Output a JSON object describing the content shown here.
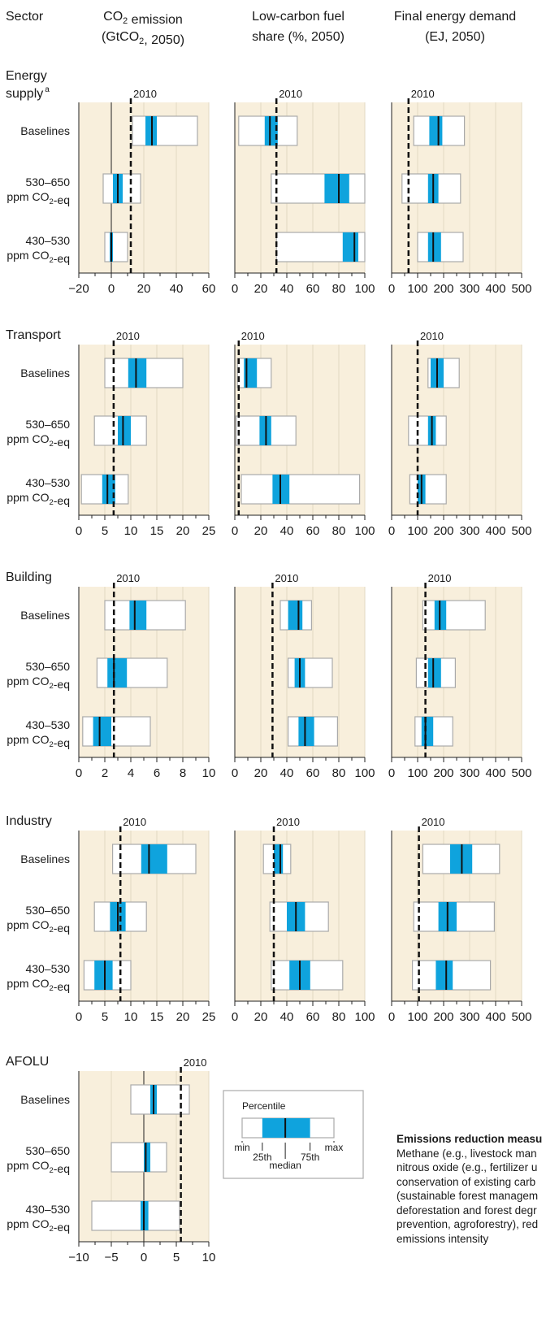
{
  "header": {
    "sector": "Sector",
    "col1_line1": "CO₂ emission",
    "col1_line2": "(GtCO₂, 2050)",
    "col2_line1": "Low-carbon fuel",
    "col2_line2": "share (%, 2050)",
    "col3_line1": "Final energy demand",
    "col3_line2": "(EJ, 2050)"
  },
  "marker_label": "2010",
  "row_labels": [
    {
      "l1": "Baselines",
      "l2": ""
    },
    {
      "l1": "530–650",
      "l2": "ppm CO₂-eq"
    },
    {
      "l1": "430–530",
      "l2": "ppm CO₂-eq"
    }
  ],
  "legend": {
    "title": "Percentile",
    "min": "min",
    "p25": "25th",
    "median": "median",
    "p75": "75th",
    "max": "max"
  },
  "notes": {
    "title": "Emissions reduction measu",
    "lines": [
      "Methane (e.g., livestock man",
      "nitrous oxide (e.g., fertilizer u",
      "conservation of existing carb",
      "(sustainable forest managem",
      "deforestation and forest degr",
      "prevention, agroforestry), red",
      "emissions intensity"
    ]
  },
  "colors": {
    "background_panel": "#f8efdc",
    "iqr_fill": "#0fa3dd",
    "box_edge": "#aaaaaa",
    "grid": "#e2d8c2"
  },
  "chart_data": {
    "type": "boxplot",
    "scenarios": [
      "Baselines",
      "530–650 ppm CO₂-eq",
      "430–530 ppm CO₂-eq"
    ],
    "sectors": [
      {
        "name": "Energy supply",
        "footnote": "a",
        "panels": [
          {
            "metric": "CO₂ emission (GtCO₂, 2050)",
            "xlim": [
              -20,
              60
            ],
            "ticks": [
              -20,
              0,
              20,
              40,
              60
            ],
            "ref2010": 12,
            "zero_line": true,
            "boxes": [
              [
                13,
                21,
                25,
                28,
                53
              ],
              [
                -5,
                1,
                4,
                7,
                18
              ],
              [
                -4,
                -1,
                0,
                1,
                10
              ]
            ]
          },
          {
            "metric": "Low-carbon fuel share (%, 2050)",
            "xlim": [
              0,
              100
            ],
            "ticks": [
              0,
              20,
              40,
              60,
              80,
              100
            ],
            "ref2010": 32,
            "boxes": [
              [
                3,
                23,
                27,
                33,
                48
              ],
              [
                28,
                69,
                80,
                88,
                100
              ],
              [
                32,
                83,
                92,
                95,
                100
              ]
            ]
          },
          {
            "metric": "Final energy demand (EJ, 2050)",
            "xlim": [
              0,
              500
            ],
            "ticks": [
              0,
              100,
              200,
              300,
              400,
              500
            ],
            "ref2010": 65,
            "boxes": [
              [
                85,
                145,
                180,
                195,
                280
              ],
              [
                40,
                140,
                160,
                180,
                265
              ],
              [
                100,
                140,
                160,
                190,
                275
              ]
            ]
          }
        ]
      },
      {
        "name": "Transport",
        "panels": [
          {
            "metric": "CO₂ emission (GtCO₂, 2050)",
            "xlim": [
              0,
              25
            ],
            "ticks": [
              0,
              5,
              10,
              15,
              20,
              25
            ],
            "ref2010": 6.7,
            "boxes": [
              [
                5,
                9.5,
                11,
                13,
                20
              ],
              [
                3,
                7.5,
                8.5,
                10,
                13
              ],
              [
                0.5,
                4.5,
                5.5,
                7,
                9.5
              ]
            ]
          },
          {
            "metric": "Low-carbon fuel share (%, 2050)",
            "xlim": [
              0,
              100
            ],
            "ticks": [
              0,
              20,
              40,
              60,
              80,
              100
            ],
            "ref2010": 3,
            "boxes": [
              [
                2,
                7,
                9,
                17,
                28
              ],
              [
                1,
                19,
                24,
                28,
                47
              ],
              [
                5,
                29,
                35,
                42,
                96
              ]
            ]
          },
          {
            "metric": "Final energy demand (EJ, 2050)",
            "xlim": [
              0,
              500
            ],
            "ticks": [
              0,
              100,
              200,
              300,
              400,
              500
            ],
            "ref2010": 100,
            "boxes": [
              [
                140,
                150,
                175,
                200,
                260
              ],
              [
                65,
                140,
                155,
                170,
                210
              ],
              [
                70,
                100,
                115,
                130,
                210
              ]
            ]
          }
        ]
      },
      {
        "name": "Building",
        "panels": [
          {
            "metric": "CO₂ emission (GtCO₂, 2050)",
            "xlim": [
              0,
              10
            ],
            "ticks": [
              0,
              2,
              4,
              6,
              8,
              10
            ],
            "ref2010": 2.7,
            "boxes": [
              [
                2,
                3.9,
                4.3,
                5.2,
                8.2
              ],
              [
                1.4,
                2.2,
                2.7,
                3.7,
                6.8
              ],
              [
                0.3,
                1.1,
                1.6,
                2.5,
                5.5
              ]
            ]
          },
          {
            "metric": "Low-carbon fuel share (%, 2050)",
            "xlim": [
              0,
              100
            ],
            "ticks": [
              0,
              20,
              40,
              60,
              80,
              100
            ],
            "ref2010": 29,
            "boxes": [
              [
                35,
                41,
                49,
                52,
                59
              ],
              [
                41,
                46,
                50,
                54,
                75
              ],
              [
                41,
                49,
                54,
                61,
                79
              ]
            ]
          },
          {
            "metric": "Final energy demand (EJ, 2050)",
            "xlim": [
              0,
              500
            ],
            "ticks": [
              0,
              100,
              200,
              300,
              400,
              500
            ],
            "ref2010": 130,
            "boxes": [
              [
                120,
                165,
                185,
                210,
                360
              ],
              [
                95,
                140,
                160,
                190,
                245
              ],
              [
                90,
                115,
                130,
                160,
                235
              ]
            ]
          }
        ]
      },
      {
        "name": "Industry",
        "panels": [
          {
            "metric": "CO₂ emission (GtCO₂, 2050)",
            "xlim": [
              0,
              25
            ],
            "ticks": [
              0,
              5,
              10,
              15,
              20,
              25
            ],
            "ref2010": 8,
            "boxes": [
              [
                6.5,
                12,
                13.5,
                17,
                22.5
              ],
              [
                3,
                6,
                7.5,
                9,
                13
              ],
              [
                1,
                3,
                5,
                6.5,
                10
              ]
            ]
          },
          {
            "metric": "Low-carbon fuel share (%, 2050)",
            "xlim": [
              0,
              100
            ],
            "ticks": [
              0,
              20,
              40,
              60,
              80,
              100
            ],
            "ref2010": 30,
            "boxes": [
              [
                22,
                30,
                35,
                37,
                43
              ],
              [
                27,
                40,
                47,
                54,
                72
              ],
              [
                28,
                42,
                50,
                58,
                83
              ]
            ]
          },
          {
            "metric": "Final energy demand (EJ, 2050)",
            "xlim": [
              0,
              500
            ],
            "ticks": [
              0,
              100,
              200,
              300,
              400,
              500
            ],
            "ref2010": 105,
            "boxes": [
              [
                120,
                225,
                270,
                310,
                415
              ],
              [
                85,
                180,
                215,
                250,
                395
              ],
              [
                80,
                170,
                210,
                235,
                380
              ]
            ]
          }
        ]
      },
      {
        "name": "AFOLU",
        "panels": [
          {
            "metric": "CO₂ emission (GtCO₂, 2050)",
            "xlim": [
              -10,
              10
            ],
            "ticks": [
              -10,
              -5,
              0,
              5,
              10
            ],
            "ref2010": 5.7,
            "zero_line": true,
            "boxes": [
              [
                -2,
                1,
                1.5,
                2,
                7
              ],
              [
                -5,
                0,
                0.3,
                1,
                3.5
              ],
              [
                -8,
                -0.5,
                0,
                0.7,
                5.5
              ]
            ]
          }
        ]
      }
    ]
  }
}
